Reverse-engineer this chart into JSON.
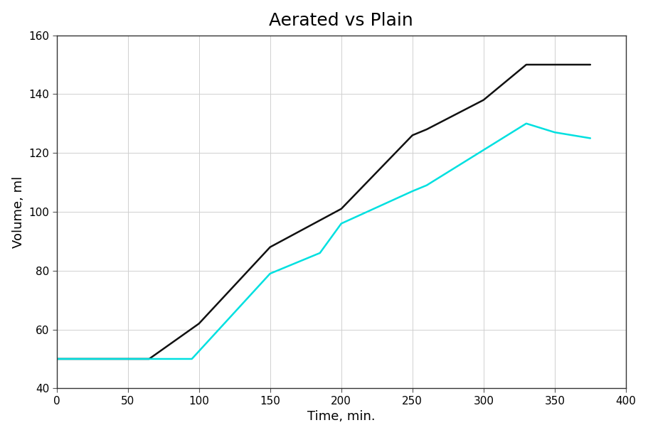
{
  "title": "Aerated vs Plain",
  "xlabel": "Time, min.",
  "ylabel": "Volume, ml",
  "xlim": [
    0,
    400
  ],
  "ylim": [
    40,
    160
  ],
  "xticks": [
    0,
    50,
    100,
    150,
    200,
    250,
    300,
    350,
    400
  ],
  "yticks": [
    40,
    60,
    80,
    100,
    120,
    140,
    160
  ],
  "background_color": "#ffffff",
  "plot_bg_color": "#ffffff",
  "grid_color": "#d0d0d0",
  "black_line": {
    "x": [
      0,
      65,
      100,
      150,
      200,
      250,
      260,
      300,
      330,
      335,
      375
    ],
    "y": [
      50,
      50,
      62,
      88,
      101,
      126,
      128,
      138,
      150,
      150,
      150
    ],
    "color": "#111111",
    "linewidth": 1.8
  },
  "cyan_line": {
    "x": [
      0,
      60,
      95,
      150,
      185,
      200,
      250,
      260,
      300,
      330,
      350,
      375
    ],
    "y": [
      50,
      50,
      50,
      79,
      86,
      96,
      107,
      109,
      121,
      130,
      127,
      125
    ],
    "color": "#00e0e0",
    "linewidth": 1.8
  },
  "title_fontsize": 18,
  "label_fontsize": 13,
  "tick_fontsize": 11
}
